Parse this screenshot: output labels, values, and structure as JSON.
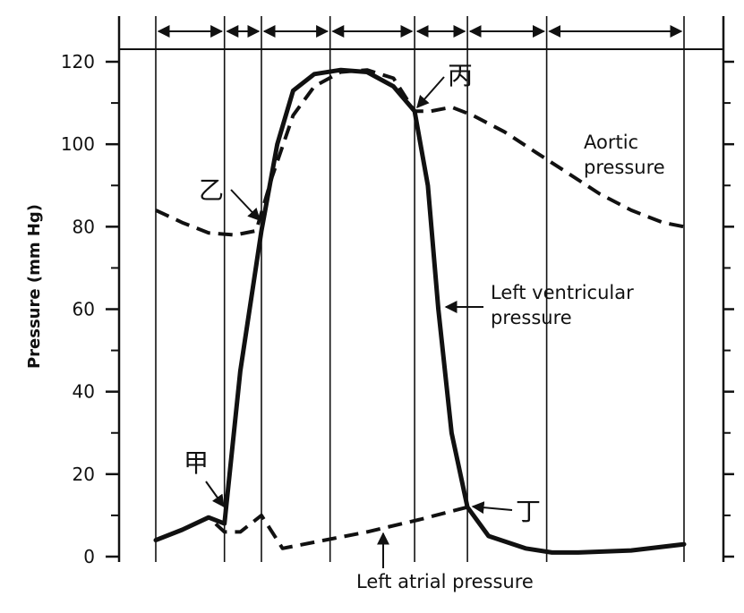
{
  "chart_data": {
    "type": "line",
    "title": "",
    "xlabel": "",
    "ylabel": "Pressure (mm Hg)",
    "ylim": [
      0,
      120
    ],
    "yticks": [
      0,
      20,
      40,
      60,
      80,
      100,
      120
    ],
    "ytick_labels": [
      "0",
      "20",
      "40",
      "60",
      "80",
      "100",
      "120"
    ],
    "x_units": "relative cardiac-cycle time (unlabeled)",
    "xlim": [
      0,
      10
    ],
    "phase_boundaries": [
      0,
      1.3,
      2.0,
      3.3,
      4.9,
      5.9,
      7.4,
      10.0
    ],
    "grid": "vertical lines at phase boundaries",
    "series": [
      {
        "name": "Aortic pressure",
        "style": "dashed",
        "x": [
          0,
          0.5,
          1.0,
          1.5,
          1.9,
          2.2,
          2.6,
          3.0,
          3.5,
          4.0,
          4.5,
          4.9,
          5.2,
          5.6,
          6.0,
          6.6,
          7.2,
          7.8,
          8.4,
          9.0,
          9.6,
          10.0
        ],
        "values": [
          84,
          81,
          78.5,
          78,
          79,
          92,
          107,
          114,
          117.5,
          118,
          116,
          108,
          108,
          109,
          107,
          103,
          98,
          93,
          88,
          84,
          81,
          80
        ]
      },
      {
        "name": "Left ventricular pressure",
        "style": "solid",
        "x": [
          0,
          0.5,
          1.0,
          1.3,
          1.6,
          2.0,
          2.3,
          2.6,
          3.0,
          3.5,
          4.0,
          4.5,
          4.9,
          5.15,
          5.35,
          5.6,
          5.9,
          6.3,
          7.0,
          7.5,
          8.0,
          9.0,
          10.0
        ],
        "values": [
          4,
          6.5,
          9.5,
          8,
          45,
          79,
          100,
          113,
          117,
          118,
          117.5,
          114,
          108,
          90,
          60,
          30,
          12,
          5,
          2,
          1,
          1,
          1.5,
          3
        ]
      },
      {
        "name": "Left atrial pressure",
        "style": "dashed",
        "x": [
          0,
          0.5,
          1.0,
          1.3,
          1.6,
          2.0,
          2.4,
          3.0,
          4.0,
          5.0,
          5.9,
          6.3,
          7.0,
          7.5,
          8.0,
          9.0,
          10.0
        ],
        "values": [
          4,
          6.5,
          9.5,
          6,
          6,
          10,
          2,
          3.5,
          6,
          9,
          12,
          5,
          2,
          1,
          1,
          1.5,
          3
        ]
      }
    ],
    "annotations": [
      {
        "text": "Aortic pressure",
        "lines": [
          "Aortic",
          "pressure"
        ]
      },
      {
        "text": "Left ventricular pressure",
        "lines": [
          "Left ventricular",
          "pressure"
        ]
      },
      {
        "text": "Left atrial pressure",
        "lines": [
          "Left atrial pressure"
        ]
      },
      {
        "text": "甲"
      },
      {
        "text": "乙"
      },
      {
        "text": "丙"
      },
      {
        "text": "丁"
      }
    ]
  }
}
